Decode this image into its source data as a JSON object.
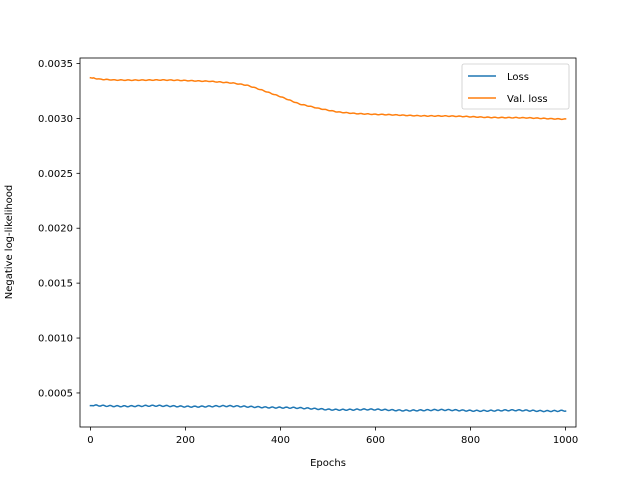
{
  "chart_data": {
    "type": "line",
    "title": "",
    "xlabel": "Epochs",
    "ylabel": "Negative log-likelihood",
    "xlim": [
      -22,
      1022
    ],
    "ylim": [
      0.00019,
      0.00355
    ],
    "xticks": [
      0,
      200,
      400,
      600,
      800,
      1000
    ],
    "xtick_labels": [
      "0",
      "200",
      "400",
      "600",
      "800",
      "1000"
    ],
    "yticks": [
      0.0005,
      0.001,
      0.0015,
      0.002,
      0.0025,
      0.003,
      0.0035
    ],
    "ytick_labels": [
      "0.0005",
      "0.0010",
      "0.0015",
      "0.0020",
      "0.0025",
      "0.0030",
      "0.0035"
    ],
    "grid": false,
    "legend_position": "top-right",
    "series": [
      {
        "name": "Loss",
        "color": "#1f77b4",
        "x": [
          0,
          50,
          100,
          150,
          200,
          250,
          300,
          350,
          400,
          450,
          500,
          550,
          600,
          650,
          700,
          750,
          800,
          850,
          900,
          950,
          1000
        ],
        "y": [
          0.000385,
          0.000383,
          0.000381,
          0.00038,
          0.000379,
          0.000378,
          0.000377,
          0.000375,
          0.000367,
          0.000358,
          0.000352,
          0.000348,
          0.000346,
          0.000344,
          0.000343,
          0.000342,
          0.000341,
          0.00034,
          0.000339,
          0.000338,
          0.00034
        ]
      },
      {
        "name": "Val. loss",
        "color": "#ff7f0e",
        "x": [
          0,
          20,
          50,
          100,
          150,
          200,
          250,
          300,
          330,
          360,
          400,
          440,
          480,
          520,
          560,
          600,
          650,
          700,
          750,
          800,
          850,
          900,
          950,
          1000
        ],
        "y": [
          0.00337,
          0.003355,
          0.00335,
          0.00335,
          0.003348,
          0.003345,
          0.00334,
          0.00332,
          0.0033,
          0.00326,
          0.0032,
          0.00313,
          0.00309,
          0.00306,
          0.003045,
          0.003035,
          0.00303,
          0.003025,
          0.00302,
          0.003015,
          0.00301,
          0.003005,
          0.003,
          0.002995
        ]
      }
    ]
  }
}
